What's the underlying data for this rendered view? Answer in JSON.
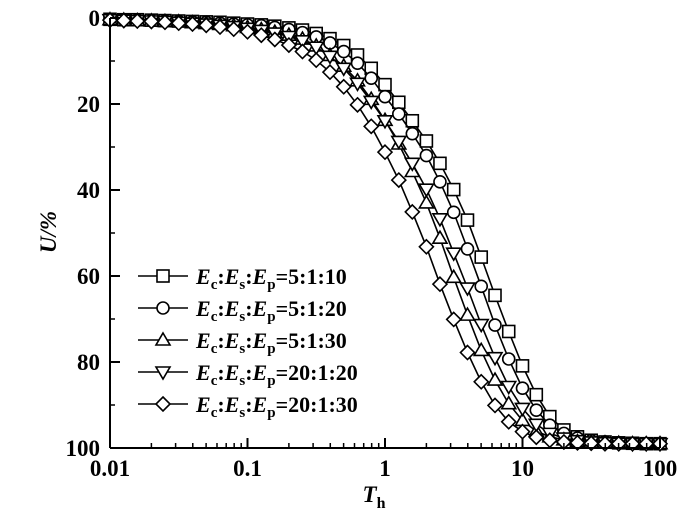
{
  "chart_data": {
    "type": "line",
    "xscale": "log",
    "xlim": [
      0.01,
      100
    ],
    "ylim": [
      0,
      100
    ],
    "y_inverted": true,
    "grid": false,
    "legend_position": "bottom-left",
    "xlabel": {
      "main": "T",
      "sub": "h"
    },
    "ylabel": "U/%",
    "x_ticks": [
      {
        "value": 0.01,
        "label": "0.01"
      },
      {
        "value": 0.1,
        "label": "0.1"
      },
      {
        "value": 1,
        "label": "1"
      },
      {
        "value": 10,
        "label": "10"
      },
      {
        "value": 100,
        "label": "100"
      }
    ],
    "y_ticks": [
      {
        "value": 0,
        "label": "0"
      },
      {
        "value": 20,
        "label": "20"
      },
      {
        "value": 40,
        "label": "40"
      },
      {
        "value": 60,
        "label": "60"
      },
      {
        "value": 80,
        "label": "80"
      },
      {
        "value": 100,
        "label": "100"
      }
    ],
    "x": [
      0.01,
      0.0126,
      0.0158,
      0.02,
      0.0251,
      0.0316,
      0.0398,
      0.0501,
      0.0631,
      0.0794,
      0.1,
      0.126,
      0.158,
      0.2,
      0.251,
      0.316,
      0.398,
      0.501,
      0.631,
      0.794,
      1,
      1.26,
      1.58,
      2,
      2.51,
      3.16,
      3.98,
      5.01,
      6.31,
      7.94,
      10,
      12.6,
      15.8,
      20,
      25.1,
      31.6,
      39.8,
      50.1,
      63.1,
      79.4,
      100
    ],
    "series": [
      {
        "name": "5:1:10",
        "marker": "square",
        "values": [
          0.3,
          0.4,
          0.4,
          0.5,
          0.6,
          0.7,
          0.8,
          0.9,
          1.0,
          1.2,
          1.4,
          1.6,
          1.9,
          2.3,
          2.8,
          3.6,
          4.8,
          6.4,
          8.6,
          11.7,
          15.5,
          19.6,
          23.9,
          28.6,
          33.8,
          39.9,
          47.0,
          55.6,
          64.5,
          72.9,
          80.9,
          87.6,
          92.7,
          95.8,
          97.4,
          98.2,
          98.6,
          98.8,
          98.9,
          99.0,
          99.0
        ]
      },
      {
        "name": "5:1:20",
        "marker": "circle",
        "values": [
          0.3,
          0.4,
          0.5,
          0.6,
          0.7,
          0.8,
          0.9,
          1.0,
          1.2,
          1.4,
          1.6,
          1.8,
          2.2,
          2.7,
          3.4,
          4.4,
          5.8,
          7.8,
          10.5,
          14.0,
          18.3,
          22.3,
          26.9,
          32.0,
          38.1,
          45.2,
          53.7,
          62.4,
          71.4,
          79.3,
          86.1,
          91.2,
          94.7,
          96.6,
          97.7,
          98.3,
          98.6,
          98.8,
          98.9,
          99.0,
          99.0
        ]
      },
      {
        "name": "5:1:30",
        "marker": "triangle-up",
        "values": [
          0.4,
          0.5,
          0.6,
          0.7,
          0.8,
          0.9,
          1.1,
          1.3,
          1.5,
          1.8,
          2.2,
          2.7,
          3.3,
          4.0,
          4.9,
          6.5,
          8.7,
          11.2,
          14.6,
          18.9,
          23.8,
          29.3,
          35.7,
          43.0,
          51.2,
          60.3,
          69.1,
          77.3,
          84.2,
          89.7,
          93.6,
          96.1,
          97.4,
          98.1,
          98.5,
          98.7,
          98.8,
          98.9,
          99.0,
          99.0,
          99.0
        ]
      },
      {
        "name": "20:1:20",
        "marker": "triangle-down",
        "values": [
          0.4,
          0.5,
          0.6,
          0.7,
          0.8,
          1.0,
          1.2,
          1.4,
          1.7,
          2.0,
          2.4,
          2.9,
          3.5,
          4.3,
          5.3,
          6.8,
          8.9,
          11.7,
          15.2,
          19.4,
          23.9,
          28.7,
          33.8,
          39.8,
          46.7,
          54.7,
          62.8,
          71.3,
          79.0,
          85.7,
          90.8,
          94.5,
          96.6,
          97.7,
          98.3,
          98.6,
          98.8,
          98.9,
          99.0,
          99.0,
          99.0
        ]
      },
      {
        "name": "20:1:30",
        "marker": "diamond",
        "values": [
          0.5,
          0.6,
          0.7,
          0.8,
          1.0,
          1.2,
          1.4,
          1.7,
          2.1,
          2.6,
          3.2,
          4.0,
          5.0,
          6.3,
          7.8,
          9.8,
          12.6,
          16.0,
          20.2,
          25.2,
          31.2,
          37.7,
          45.1,
          53.2,
          61.9,
          70.1,
          77.8,
          84.6,
          90.1,
          93.9,
          96.2,
          97.5,
          98.2,
          98.6,
          98.8,
          98.9,
          99.0,
          99.0,
          99.0,
          99.0,
          99.0
        ]
      }
    ],
    "legend": [
      {
        "c": "c",
        "s": "s",
        "p": "p",
        "ratio": "=5:1:10"
      },
      {
        "c": "c",
        "s": "s",
        "p": "p",
        "ratio": "=5:1:20"
      },
      {
        "c": "c",
        "s": "s",
        "p": "p",
        "ratio": "=5:1:30"
      },
      {
        "c": "c",
        "s": "s",
        "p": "p",
        "ratio": "=20:1:20"
      },
      {
        "c": "c",
        "s": "s",
        "p": "p",
        "ratio": "=20:1:30"
      }
    ],
    "legend_symbol": "E",
    "legend_separator": ":"
  }
}
